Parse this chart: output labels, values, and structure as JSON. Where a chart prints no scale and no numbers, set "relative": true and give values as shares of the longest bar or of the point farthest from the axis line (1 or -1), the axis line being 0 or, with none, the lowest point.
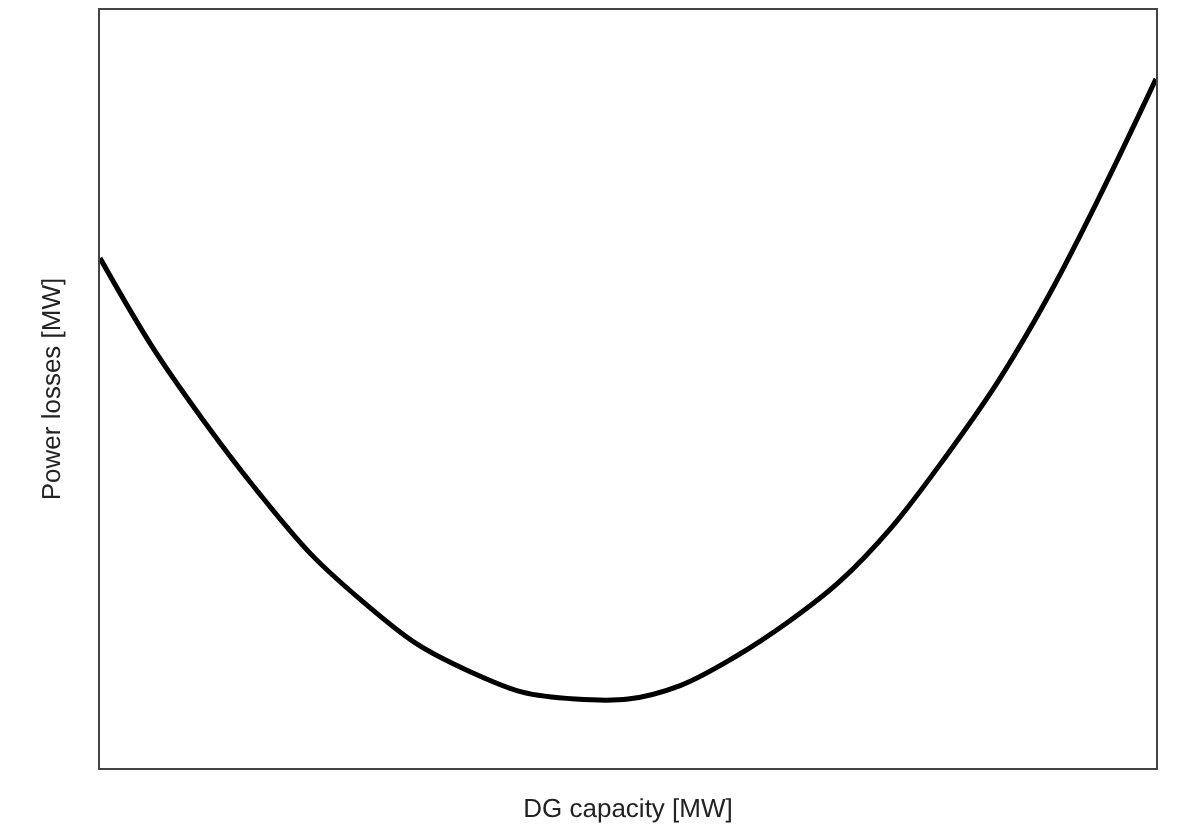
{
  "chart_data": {
    "type": "line",
    "relative": true,
    "xlabel": "DG capacity [MW]",
    "ylabel": "Power losses [MW]",
    "categories": [
      null,
      null,
      null,
      null,
      null,
      null,
      null,
      null,
      null,
      null,
      null,
      null,
      null,
      null,
      null,
      null,
      null,
      null,
      null,
      null,
      null
    ],
    "series": [
      {
        "color": "#000000",
        "values": [
          0.74,
          0.61,
          0.5,
          0.4,
          0.31,
          0.24,
          0.18,
          0.14,
          0.11,
          0.1,
          0.1,
          0.12,
          0.16,
          0.21,
          0.27,
          0.35,
          0.45,
          0.56,
          0.69,
          0.84,
          1.0
        ]
      }
    ],
    "marker": "none",
    "line_style": "solid",
    "legend": false,
    "tick_labels": false
  }
}
